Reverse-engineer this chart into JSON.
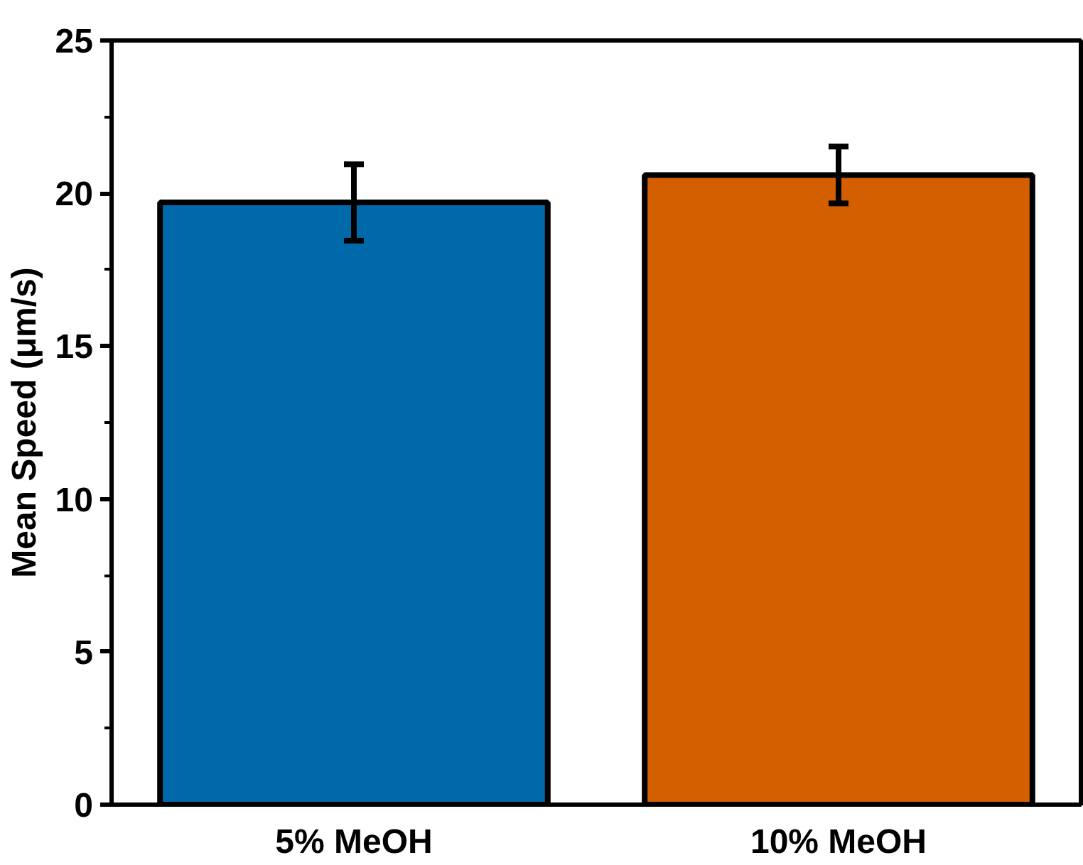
{
  "chart_data": {
    "type": "bar",
    "ylabel": "Mean Speed (μm/s)",
    "categories": [
      "5% MeOH",
      "10% MeOH"
    ],
    "values": [
      19.7,
      20.6
    ],
    "colors": [
      "#0069aa",
      "#d45f00"
    ],
    "errors": [
      1.25,
      0.93
    ],
    "ylim": [
      0,
      25
    ],
    "yticks": [
      0,
      5,
      10,
      15,
      20,
      25
    ],
    "grid": false
  }
}
